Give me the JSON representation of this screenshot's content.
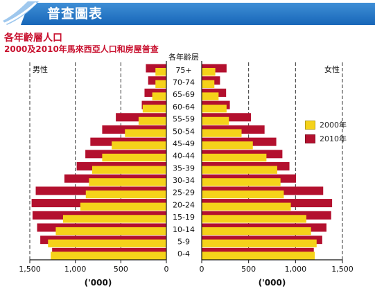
{
  "banner": {
    "title": "普查圖表"
  },
  "chart_data": {
    "type": "bar",
    "title": "各年齡層人口",
    "subtitle": "2000及2010年馬來西亞人口和房屋普查",
    "category_axis_label": "各年齡层",
    "categories": [
      "75+",
      "70-74",
      "65-69",
      "60-64",
      "55-59",
      "50-54",
      "45-49",
      "40-44",
      "35-39",
      "30-34",
      "25-29",
      "20-24",
      "15-19",
      "10-14",
      "5-9",
      "0-4"
    ],
    "panels": [
      {
        "label": "男性",
        "xunit": "('000)",
        "xlim": [
          1500,
          0
        ],
        "ticks": [
          1500,
          1000,
          500,
          0
        ],
        "tick_labels": [
          "1,500",
          "1,000",
          "500",
          "0"
        ],
        "series": [
          {
            "name": "2000年",
            "values": [
              120,
              120,
              155,
              260,
              305,
              455,
              600,
              705,
              815,
              850,
              885,
              945,
              1135,
              1215,
              1300,
              1270
            ]
          },
          {
            "name": "2010年",
            "values": [
              225,
              200,
              240,
              270,
              555,
              705,
              835,
              890,
              985,
              1120,
              1435,
              1480,
              1470,
              1420,
              1385,
              1255
            ]
          }
        ]
      },
      {
        "label": "女性",
        "xunit": "('000)",
        "xlim": [
          0,
          1500
        ],
        "ticks": [
          0,
          500,
          1000,
          1500
        ],
        "tick_labels": [
          "0",
          "500",
          "1,000",
          "1,500"
        ],
        "series": [
          {
            "name": "2000年",
            "values": [
              145,
              135,
              180,
              265,
              290,
              425,
              545,
              690,
              805,
              840,
              875,
              950,
              1115,
              1165,
              1225,
              1205
            ]
          },
          {
            "name": "2010年",
            "values": [
              265,
              195,
              260,
              300,
              525,
              670,
              795,
              860,
              935,
              1005,
              1295,
              1390,
              1380,
              1330,
              1285,
              1195
            ]
          }
        ]
      }
    ],
    "legend": {
      "position": "right"
    },
    "colors": {
      "2000年": "#f5d21a",
      "2010年": "#b3102e"
    },
    "grid": "dashed vertical lines at 500, 1,000 and 1,500"
  }
}
